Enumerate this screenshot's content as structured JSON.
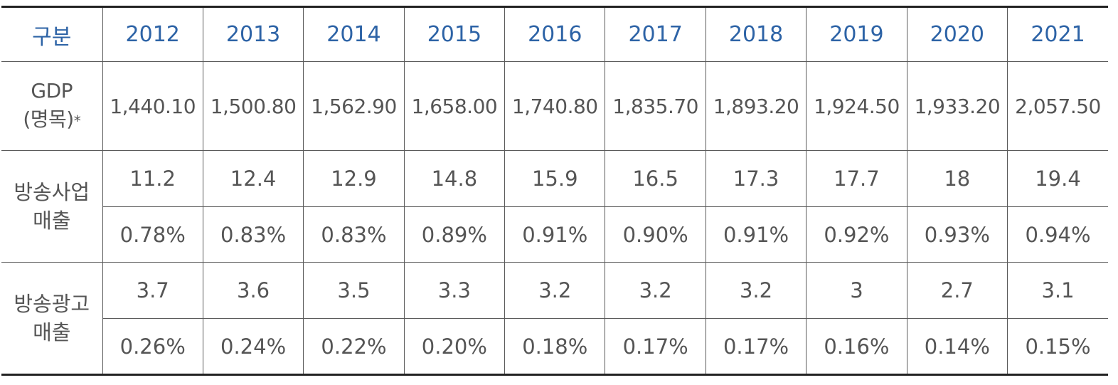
{
  "table": {
    "header": {
      "category_label": "구분",
      "years": [
        "2012",
        "2013",
        "2014",
        "2015",
        "2016",
        "2017",
        "2018",
        "2019",
        "2020",
        "2021"
      ]
    },
    "gdp": {
      "label_line1": "GDP",
      "label_line2": "(명목)",
      "label_mark": "*",
      "values": [
        "1,440.10",
        "1,500.80",
        "1,562.90",
        "1,658.00",
        "1,740.80",
        "1,835.70",
        "1,893.20",
        "1,924.50",
        "1,933.20",
        "2,057.50"
      ]
    },
    "broadcast_business": {
      "label_line1": "방송사업",
      "label_line2": "매출",
      "values": [
        "11.2",
        "12.4",
        "12.9",
        "14.8",
        "15.9",
        "16.5",
        "17.3",
        "17.7",
        "18",
        "19.4"
      ],
      "percents": [
        "0.78%",
        "0.83%",
        "0.83%",
        "0.89%",
        "0.91%",
        "0.90%",
        "0.91%",
        "0.92%",
        "0.93%",
        "0.94%"
      ]
    },
    "broadcast_ads": {
      "label_line1": "방송광고",
      "label_line2": "매출",
      "values": [
        "3.7",
        "3.6",
        "3.5",
        "3.3",
        "3.2",
        "3.2",
        "3.2",
        "3",
        "2.7",
        "3.1"
      ],
      "percents": [
        "0.26%",
        "0.24%",
        "0.22%",
        "0.20%",
        "0.18%",
        "0.17%",
        "0.17%",
        "0.16%",
        "0.14%",
        "0.15%"
      ]
    },
    "colors": {
      "header_text": "#2d63a6",
      "body_text": "#555555",
      "rule": "#222222",
      "grid": "#5a5a5a"
    }
  }
}
